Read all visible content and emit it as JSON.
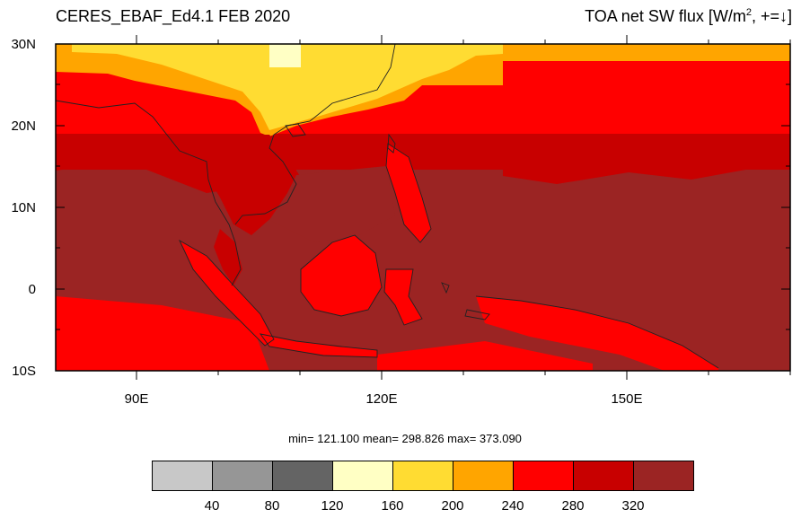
{
  "title": {
    "left": "CERES_EBAF_Ed4.1 FEB 2020",
    "right_prefix": "TOA net SW flux [W/m",
    "right_sup": "2",
    "right_suffix": ", +=",
    "right_arrow": "↓",
    "right_close": "]"
  },
  "map": {
    "lat_labels": [
      "30N",
      "20N",
      "10N",
      "0",
      "10S"
    ],
    "lon_labels": [
      "90E",
      "120E",
      "150E"
    ],
    "lat_range": [
      -10,
      30
    ],
    "lon_range": [
      80,
      170
    ],
    "ocean_color": "#9b2423",
    "coastline_color": "#222222"
  },
  "stats": {
    "text": "min= 121.100   mean= 298.826   max= 373.090"
  },
  "colorbar": {
    "colors": [
      "#c8c8c8",
      "#969696",
      "#646464",
      "#ffffc4",
      "#ffdc32",
      "#ffa500",
      "#ff0000",
      "#c80000",
      "#9b2423"
    ],
    "labels": [
      "40",
      "80",
      "120",
      "160",
      "200",
      "240",
      "280",
      "320"
    ]
  }
}
